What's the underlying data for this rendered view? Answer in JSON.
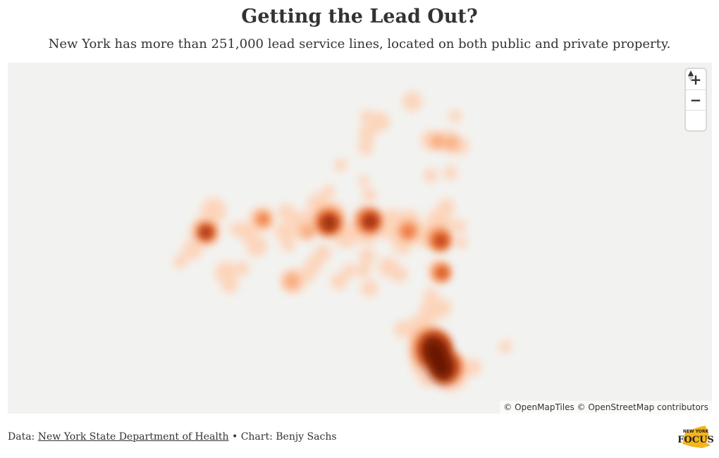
{
  "header": {
    "title": "Getting the Lead Out?",
    "subtitle": "New York has more than 251,000 lead service lines, located on both public and private property."
  },
  "map": {
    "background_color": "#f2f2f0",
    "heat_colors": [
      "#fdd0b4",
      "#f9a270",
      "#ef6a2b",
      "#b8370c",
      "#6e1506"
    ],
    "zoom_in_label": "+",
    "zoom_out_label": "−",
    "attribution": "© OpenMapTiles © OpenStreetMap contributors"
  },
  "footer": {
    "data_prefix": "Data:",
    "data_source": "New York State Department of Health",
    "separator": "•",
    "chart_credit": "Chart: Benjy Sachs"
  },
  "logo": {
    "line1": "NEW YORK",
    "line2": "FOCUS"
  }
}
